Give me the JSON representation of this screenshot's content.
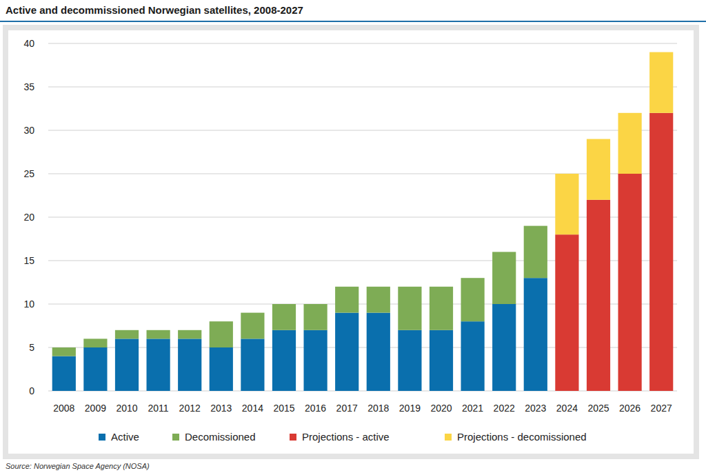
{
  "chart_data": {
    "type": "bar",
    "title": "Active and decommissioned Norwegian satellites, 2008-2027",
    "source": "Source: Norwegian Space Agency (NOSA)",
    "categories": [
      "2008",
      "2009",
      "2010",
      "2011",
      "2012",
      "2013",
      "2014",
      "2015",
      "2016",
      "2017",
      "2018",
      "2019",
      "2020",
      "2021",
      "2022",
      "2023",
      "2024",
      "2025",
      "2026",
      "2027"
    ],
    "series": [
      {
        "name": "Active",
        "color": "#0a6fad",
        "values": [
          4,
          5,
          6,
          6,
          6,
          5,
          6,
          7,
          7,
          9,
          9,
          7,
          7,
          8,
          10,
          13,
          null,
          null,
          null,
          null
        ]
      },
      {
        "name": "Decomissioned",
        "color": "#7eac55",
        "values": [
          1,
          1,
          1,
          1,
          1,
          3,
          3,
          3,
          3,
          3,
          3,
          5,
          5,
          5,
          6,
          6,
          null,
          null,
          null,
          null
        ]
      },
      {
        "name": "Projections - active",
        "color": "#d93a33",
        "values": [
          null,
          null,
          null,
          null,
          null,
          null,
          null,
          null,
          null,
          null,
          null,
          null,
          null,
          null,
          null,
          null,
          18,
          22,
          25,
          32
        ]
      },
      {
        "name": "Projections - decomissioned",
        "color": "#fbd545",
        "values": [
          null,
          null,
          null,
          null,
          null,
          null,
          null,
          null,
          null,
          null,
          null,
          null,
          null,
          null,
          null,
          null,
          7,
          7,
          7,
          7
        ]
      }
    ],
    "ylim": [
      0,
      40
    ],
    "yticks": [
      0,
      5,
      10,
      15,
      20,
      25,
      30,
      35,
      40
    ],
    "grid": true,
    "stacked": true,
    "legend": "bottom"
  }
}
